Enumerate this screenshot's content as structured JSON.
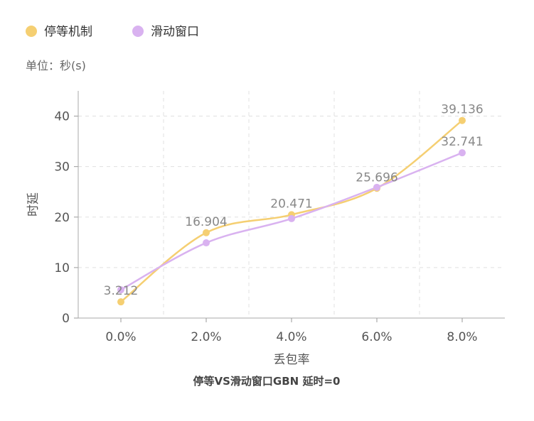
{
  "chart_data": {
    "type": "line",
    "title": "停等VS滑动窗口GBN 延时=0",
    "unit_label": "单位：秒(s)",
    "xlabel": "丢包率",
    "ylabel": "时延",
    "categories": [
      "0.0%",
      "2.0%",
      "4.0%",
      "6.0%",
      "8.0%"
    ],
    "ylim": [
      0,
      45
    ],
    "yticks": [
      0,
      10,
      20,
      30,
      40
    ],
    "grid": true,
    "legend_position": "top-left",
    "series": [
      {
        "name": "停等机制",
        "color": "#f5cf72",
        "values": [
          3.212,
          16.904,
          20.471,
          25.696,
          39.136
        ],
        "labels": [
          "3.212",
          "16.904",
          "20.471",
          "25.696",
          "39.136"
        ]
      },
      {
        "name": "滑动窗口",
        "color": "#d9b2f0",
        "values": [
          5.6,
          14.9,
          19.7,
          25.9,
          32.741
        ],
        "labels": [
          "",
          "",
          "",
          "",
          "32.741"
        ]
      }
    ]
  }
}
